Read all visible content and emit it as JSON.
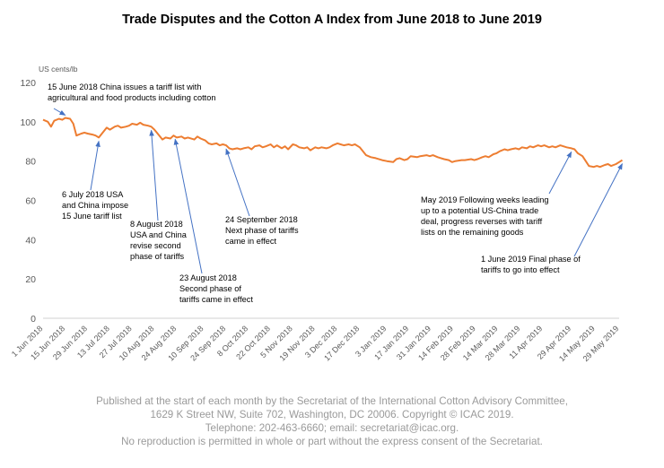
{
  "chart_data": {
    "type": "line",
    "title": "Trade Disputes and the Cotton A Index from June 2018 to June 2019",
    "ylabel": "US cents/lb",
    "xlabel": "",
    "ylim": [
      0,
      120
    ],
    "yticks": [
      0,
      20,
      40,
      60,
      80,
      100,
      120
    ],
    "grid": false,
    "legend": "none",
    "series_color": "#ED7D31",
    "x_tick_labels": [
      "1 Jun 2018",
      "15 Jun 2018",
      "29 Jun 2018",
      "13 Jul 2018",
      "27 Jul 2018",
      "10 Aug 2018",
      "24 Aug 2018",
      "10 Sep 2018",
      "24 Sep 2018",
      "8 Oct 2018",
      "22 Oct 2018",
      "5 Nov 2018",
      "19 Nov 2018",
      "3 Dec 2018",
      "17 Dec 2018",
      "3 Jan 2019",
      "17 Jan 2019",
      "31 Jan 2019",
      "14 Feb 2019",
      "28 Feb 2019",
      "14 Mar 2019",
      "28 Mar 2019",
      "11 Apr 2019",
      "29 Apr 2019",
      "14 May 2019",
      "29 May 2019"
    ],
    "points": [
      [
        "2018-06-01",
        101
      ],
      [
        "2018-06-04",
        100
      ],
      [
        "2018-06-06",
        97.5
      ],
      [
        "2018-06-08",
        100.5
      ],
      [
        "2018-06-11",
        101.5
      ],
      [
        "2018-06-13",
        101
      ],
      [
        "2018-06-15",
        102
      ],
      [
        "2018-06-18",
        101.5
      ],
      [
        "2018-06-20",
        99
      ],
      [
        "2018-06-22",
        93
      ],
      [
        "2018-06-25",
        94
      ],
      [
        "2018-06-27",
        94.5
      ],
      [
        "2018-06-29",
        94
      ],
      [
        "2018-07-02",
        93.5
      ],
      [
        "2018-07-04",
        93
      ],
      [
        "2018-07-06",
        92
      ],
      [
        "2018-07-09",
        95
      ],
      [
        "2018-07-11",
        97
      ],
      [
        "2018-07-13",
        96
      ],
      [
        "2018-07-16",
        97.5
      ],
      [
        "2018-07-18",
        98
      ],
      [
        "2018-07-20",
        97
      ],
      [
        "2018-07-23",
        97.5
      ],
      [
        "2018-07-25",
        98
      ],
      [
        "2018-07-27",
        99
      ],
      [
        "2018-07-30",
        98.5
      ],
      [
        "2018-08-01",
        99.5
      ],
      [
        "2018-08-03",
        98.5
      ],
      [
        "2018-08-06",
        98
      ],
      [
        "2018-08-08",
        97.5
      ],
      [
        "2018-08-10",
        96
      ],
      [
        "2018-08-13",
        93
      ],
      [
        "2018-08-15",
        91
      ],
      [
        "2018-08-17",
        92
      ],
      [
        "2018-08-20",
        91.5
      ],
      [
        "2018-08-22",
        93
      ],
      [
        "2018-08-24",
        92
      ],
      [
        "2018-08-27",
        92.5
      ],
      [
        "2018-08-29",
        91.5
      ],
      [
        "2018-08-31",
        92
      ],
      [
        "2018-09-04",
        91
      ],
      [
        "2018-09-06",
        92.5
      ],
      [
        "2018-09-08",
        91.5
      ],
      [
        "2018-09-11",
        90.5
      ],
      [
        "2018-09-13",
        89
      ],
      [
        "2018-09-15",
        88.5
      ],
      [
        "2018-09-18",
        89
      ],
      [
        "2018-09-20",
        88
      ],
      [
        "2018-09-22",
        88.5
      ],
      [
        "2018-09-24",
        88
      ],
      [
        "2018-09-26",
        86.5
      ],
      [
        "2018-09-28",
        86
      ],
      [
        "2018-10-01",
        86.5
      ],
      [
        "2018-10-03",
        86
      ],
      [
        "2018-10-05",
        86.5
      ],
      [
        "2018-10-08",
        87
      ],
      [
        "2018-10-10",
        86
      ],
      [
        "2018-10-12",
        87.5
      ],
      [
        "2018-10-15",
        88
      ],
      [
        "2018-10-17",
        87
      ],
      [
        "2018-10-19",
        87.5
      ],
      [
        "2018-10-22",
        88.5
      ],
      [
        "2018-10-24",
        87
      ],
      [
        "2018-10-26",
        88
      ],
      [
        "2018-10-29",
        86.5
      ],
      [
        "2018-10-31",
        87.5
      ],
      [
        "2018-11-02",
        86
      ],
      [
        "2018-11-05",
        88.5
      ],
      [
        "2018-11-07",
        88
      ],
      [
        "2018-11-09",
        87
      ],
      [
        "2018-11-12",
        86.5
      ],
      [
        "2018-11-14",
        87
      ],
      [
        "2018-11-16",
        85.5
      ],
      [
        "2018-11-19",
        87
      ],
      [
        "2018-11-21",
        86.5
      ],
      [
        "2018-11-23",
        87
      ],
      [
        "2018-11-26",
        86.5
      ],
      [
        "2018-11-28",
        87
      ],
      [
        "2018-11-30",
        88
      ],
      [
        "2018-12-03",
        89
      ],
      [
        "2018-12-05",
        88.5
      ],
      [
        "2018-12-07",
        88
      ],
      [
        "2018-12-10",
        88.5
      ],
      [
        "2018-12-12",
        88
      ],
      [
        "2018-12-14",
        88.5
      ],
      [
        "2018-12-17",
        87
      ],
      [
        "2018-12-19",
        85
      ],
      [
        "2018-12-21",
        83
      ],
      [
        "2018-12-24",
        82
      ],
      [
        "2018-12-27",
        81.5
      ],
      [
        "2018-12-31",
        80.5
      ],
      [
        "2019-01-03",
        80
      ],
      [
        "2019-01-07",
        79.5
      ],
      [
        "2019-01-09",
        81
      ],
      [
        "2019-01-11",
        81.5
      ],
      [
        "2019-01-14",
        80.5
      ],
      [
        "2019-01-16",
        81
      ],
      [
        "2019-01-18",
        82.5
      ],
      [
        "2019-01-22",
        82
      ],
      [
        "2019-01-24",
        82.5
      ],
      [
        "2019-01-28",
        83
      ],
      [
        "2019-01-30",
        82.5
      ],
      [
        "2019-02-01",
        83
      ],
      [
        "2019-02-04",
        82
      ],
      [
        "2019-02-06",
        81.5
      ],
      [
        "2019-02-08",
        81
      ],
      [
        "2019-02-11",
        80.5
      ],
      [
        "2019-02-13",
        79.5
      ],
      [
        "2019-02-15",
        80
      ],
      [
        "2019-02-19",
        80.5
      ],
      [
        "2019-02-21",
        80.5
      ],
      [
        "2019-02-25",
        81
      ],
      [
        "2019-02-27",
        80.5
      ],
      [
        "2019-03-01",
        81
      ],
      [
        "2019-03-04",
        82
      ],
      [
        "2019-03-06",
        82.5
      ],
      [
        "2019-03-08",
        82
      ],
      [
        "2019-03-11",
        83.5
      ],
      [
        "2019-03-13",
        84
      ],
      [
        "2019-03-15",
        85
      ],
      [
        "2019-03-18",
        86
      ],
      [
        "2019-03-20",
        85.5
      ],
      [
        "2019-03-22",
        86
      ],
      [
        "2019-03-25",
        86.5
      ],
      [
        "2019-03-27",
        86
      ],
      [
        "2019-03-29",
        87
      ],
      [
        "2019-04-01",
        86.5
      ],
      [
        "2019-04-03",
        87.5
      ],
      [
        "2019-04-05",
        87
      ],
      [
        "2019-04-08",
        88
      ],
      [
        "2019-04-10",
        87.5
      ],
      [
        "2019-04-12",
        88
      ],
      [
        "2019-04-15",
        87
      ],
      [
        "2019-04-17",
        87.5
      ],
      [
        "2019-04-19",
        87
      ],
      [
        "2019-04-22",
        88
      ],
      [
        "2019-04-24",
        87.5
      ],
      [
        "2019-04-26",
        87
      ],
      [
        "2019-04-29",
        86.5
      ],
      [
        "2019-05-01",
        86
      ],
      [
        "2019-05-03",
        84
      ],
      [
        "2019-05-06",
        82.5
      ],
      [
        "2019-05-08",
        80
      ],
      [
        "2019-05-10",
        77.5
      ],
      [
        "2019-05-13",
        77
      ],
      [
        "2019-05-15",
        77.5
      ],
      [
        "2019-05-17",
        77
      ],
      [
        "2019-05-20",
        78
      ],
      [
        "2019-05-22",
        78.5
      ],
      [
        "2019-05-24",
        77.5
      ],
      [
        "2019-05-27",
        78.5
      ],
      [
        "2019-05-29",
        79.5
      ],
      [
        "2019-05-31",
        80.5
      ]
    ],
    "annotations": [
      {
        "target_date": "2018-06-15",
        "lines": [
          "15 June 2018 China issues a tariff list with",
          "agricultural and food products including cotton"
        ]
      },
      {
        "target_date": "2018-07-06",
        "lines": [
          "6 July 2018 USA",
          "and China impose",
          "15 June tariff list"
        ]
      },
      {
        "target_date": "2018-08-08",
        "lines": [
          "8 August 2018",
          "USA and China",
          "revise second",
          "phase of tariffs"
        ]
      },
      {
        "target_date": "2018-08-23",
        "lines": [
          "23 August 2018",
          "Second phase of",
          "tariffs came in effect"
        ]
      },
      {
        "target_date": "2018-09-24",
        "lines": [
          "24 September 2018",
          "Next phase of tariffs",
          "came in effect"
        ]
      },
      {
        "target_date": "2019-04-29",
        "lines": [
          "May 2019 Following weeks leading",
          "up to a potential US-China trade",
          "deal, progress reverses with tariff",
          "lists on the remaining goods"
        ]
      },
      {
        "target_date": "2019-05-31",
        "lines": [
          "1 June 2019 Final phase of",
          "tariffs to go into effect"
        ]
      }
    ]
  },
  "footer": {
    "line1": "Published at the start of each month by the Secretariat of the International Cotton Advisory Committee,",
    "line2": "1629 K Street NW, Suite 702, Washington, DC 20006. Copyright © ICAC 2019.",
    "line3": "Telephone: 202-463-6660; email: secretariat@icac.org.",
    "line4": "No reproduction is permitted in whole or part without the express consent of the Secretariat."
  }
}
